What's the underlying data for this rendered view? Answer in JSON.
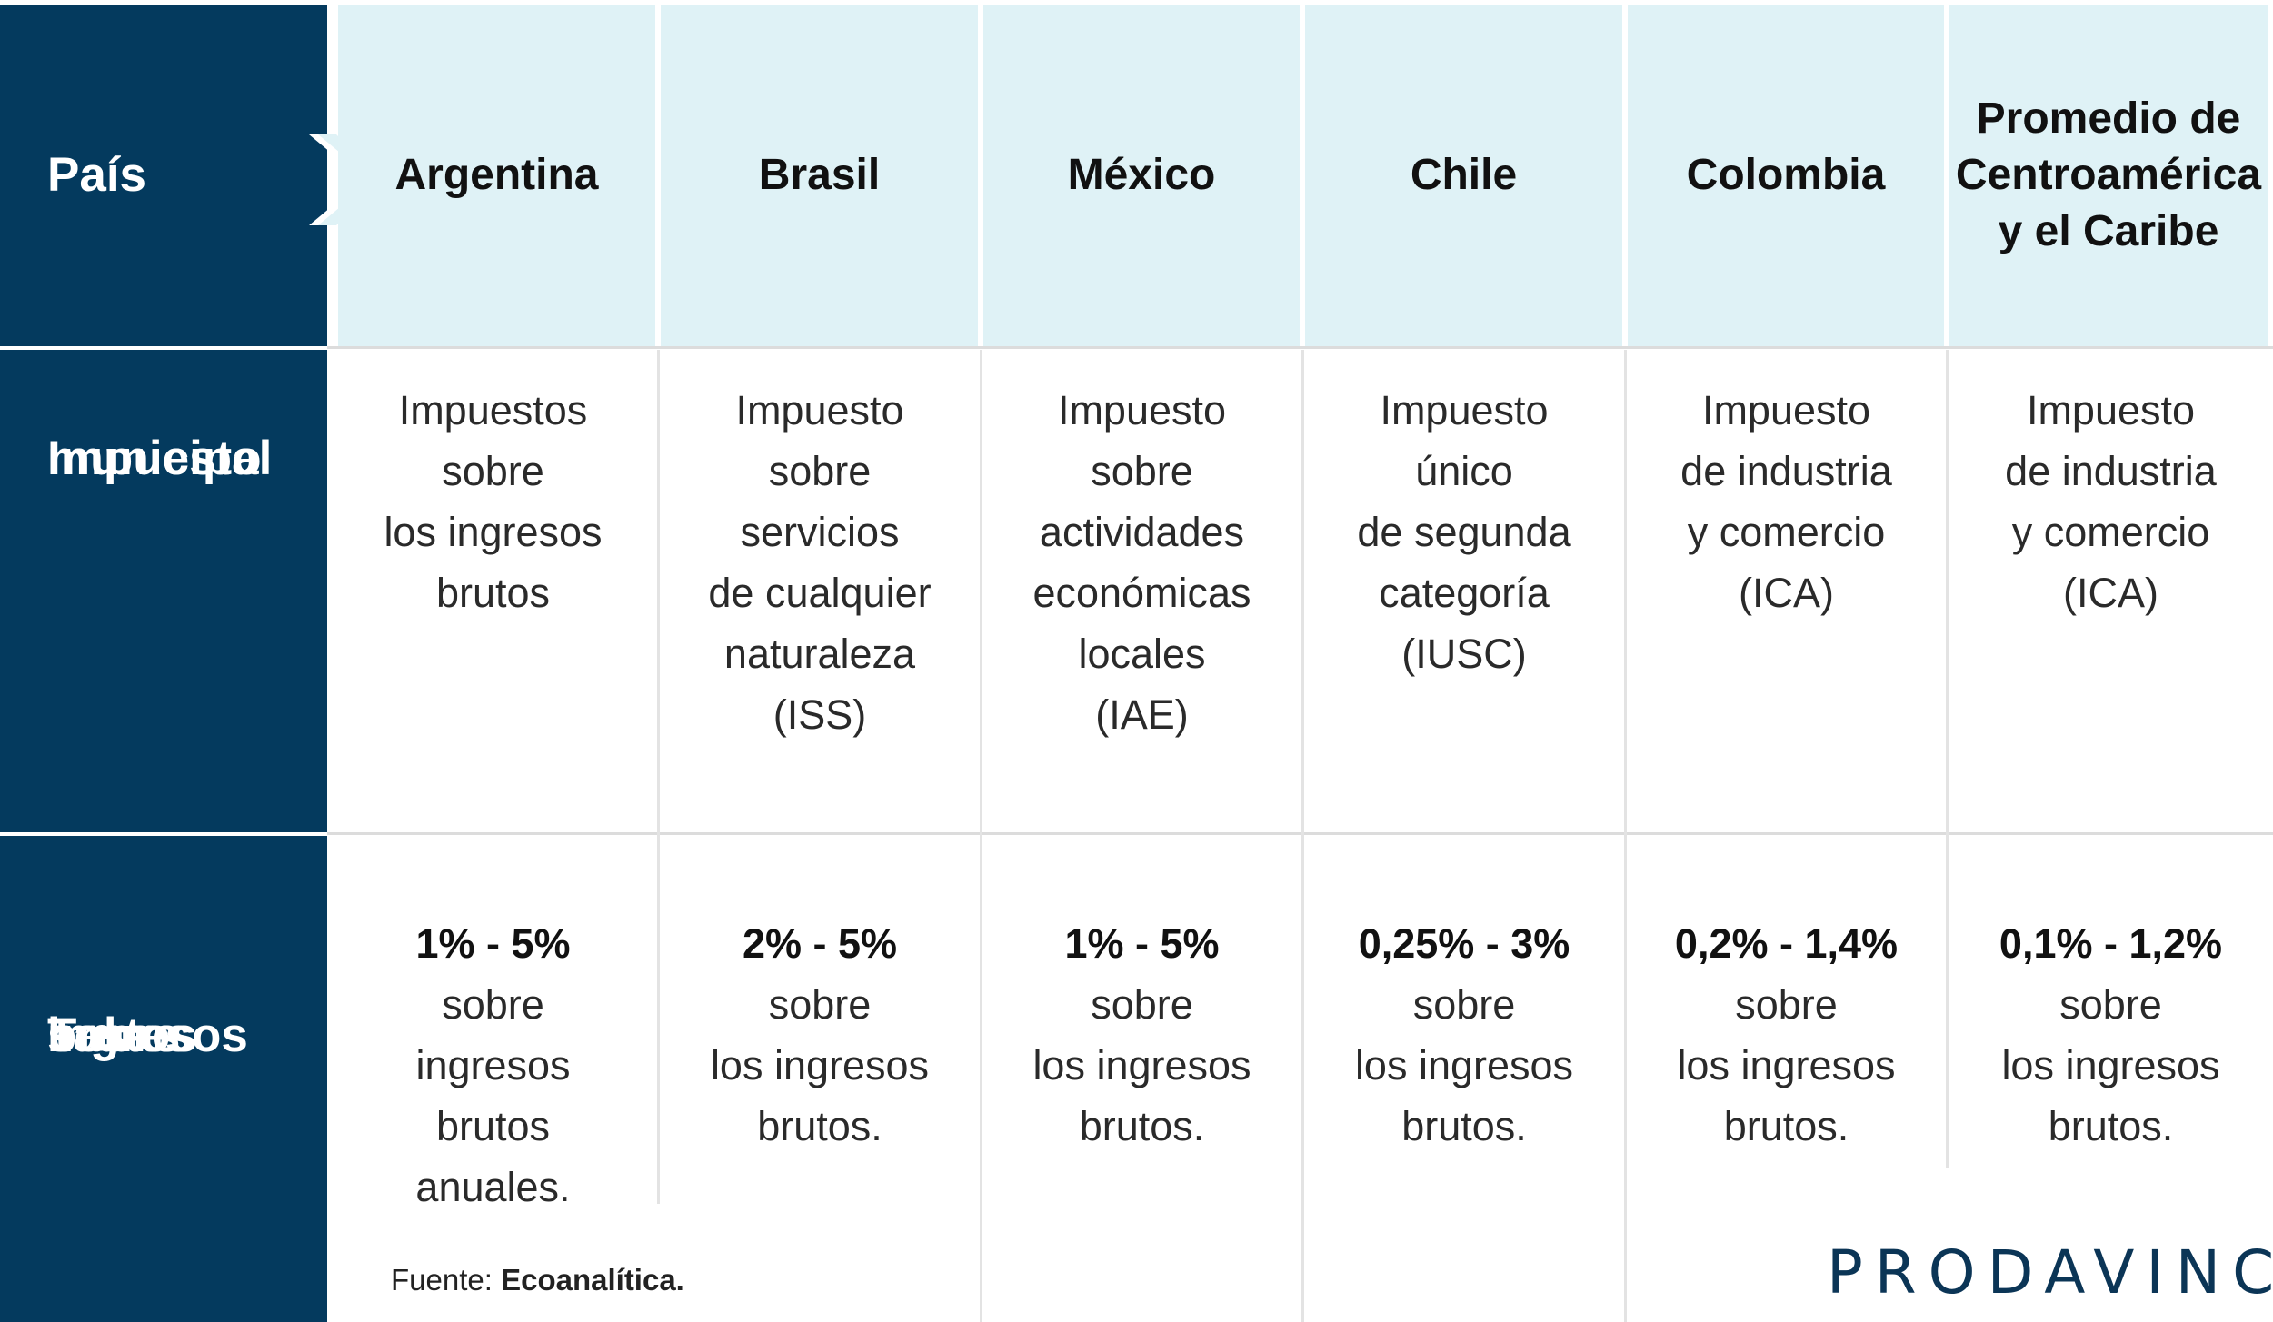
{
  "row_headers": {
    "country": "País",
    "tax": [
      "Impuesto",
      "municipal"
    ],
    "rates": [
      "Tasas",
      "sobre",
      "ingresos",
      "brutos"
    ]
  },
  "columns": [
    {
      "country": [
        "Argentina"
      ],
      "tax": [
        "Impuestos",
        "sobre",
        "los ingresos",
        "brutos"
      ],
      "rate": "1% - 5%",
      "rate_desc": [
        "sobre",
        "ingresos",
        "brutos",
        "anuales."
      ]
    },
    {
      "country": [
        "Brasil"
      ],
      "tax": [
        "Impuesto",
        "sobre",
        "servicios",
        "de cualquier",
        "naturaleza",
        "(ISS)"
      ],
      "rate": "2% - 5%",
      "rate_desc": [
        "sobre",
        "los ingresos",
        "brutos."
      ]
    },
    {
      "country": [
        "México"
      ],
      "tax": [
        "Impuesto",
        "sobre",
        "actividades",
        "económicas",
        "locales",
        "(IAE)"
      ],
      "rate": "1% - 5%",
      "rate_desc": [
        "sobre",
        "los ingresos",
        "brutos."
      ]
    },
    {
      "country": [
        "Chile"
      ],
      "tax": [
        "Impuesto",
        "único",
        "de segunda",
        "categoría",
        "(IUSC)"
      ],
      "rate": "0,25% - 3%",
      "rate_desc": [
        "sobre",
        "los ingresos",
        "brutos."
      ]
    },
    {
      "country": [
        "Colombia"
      ],
      "tax": [
        "Impuesto",
        "de industria",
        "y comercio",
        "(ICA)"
      ],
      "rate": "0,2% - 1,4%",
      "rate_desc": [
        "sobre",
        "los ingresos",
        "brutos."
      ]
    },
    {
      "country": [
        "Promedio de",
        "Centroamérica",
        "y el Caribe"
      ],
      "tax": [
        "Impuesto",
        "de industria",
        "y comercio",
        "(ICA)"
      ],
      "rate": "0,1% - 1,2%",
      "rate_desc": [
        "sobre",
        "los ingresos",
        "brutos."
      ]
    }
  ],
  "source": {
    "label": "Fuente:",
    "value": "Ecoanalítica."
  },
  "logo": "PRODAVINCI",
  "colors": {
    "dark": "#043a5e",
    "header_bg": "#dff2f6",
    "divider": "#e3e3e3"
  }
}
